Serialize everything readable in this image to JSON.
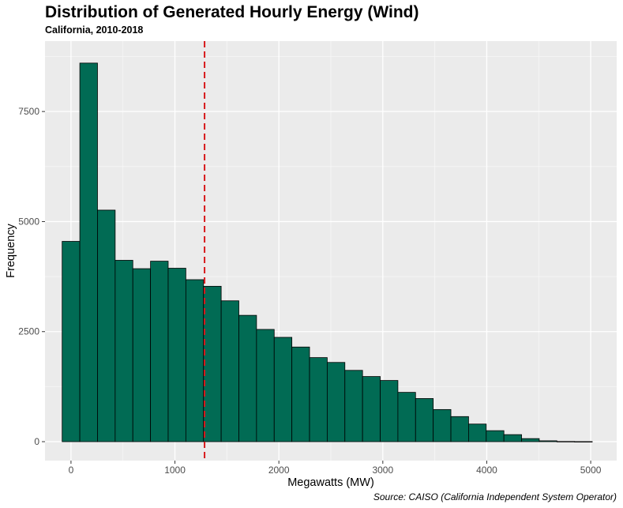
{
  "chart_data": {
    "type": "bar",
    "title": "Distribution of Generated Hourly Energy (Wind)",
    "subtitle": "California, 2010-2018",
    "caption": "Source: CAISO (California Independent System Operator)",
    "xlabel": "Megawatts (MW)",
    "ylabel": "Frequency",
    "xlim": [
      -250,
      5250
    ],
    "ylim": [
      -430,
      9100
    ],
    "x_ticks": [
      0,
      1000,
      2000,
      3000,
      4000,
      5000
    ],
    "x_tick_labels": [
      "0",
      "1000",
      "2000",
      "3000",
      "4000",
      "5000"
    ],
    "y_ticks": [
      0,
      2500,
      5000,
      7500
    ],
    "y_tick_labels": [
      "0",
      "2500",
      "5000",
      "7500"
    ],
    "bin_width": 170,
    "bins": [
      {
        "x0": -85,
        "x1": 85,
        "count": 4550
      },
      {
        "x0": 85,
        "x1": 255,
        "count": 8600
      },
      {
        "x0": 255,
        "x1": 425,
        "count": 5260
      },
      {
        "x0": 425,
        "x1": 595,
        "count": 4120
      },
      {
        "x0": 595,
        "x1": 765,
        "count": 3930
      },
      {
        "x0": 765,
        "x1": 935,
        "count": 4100
      },
      {
        "x0": 935,
        "x1": 1105,
        "count": 3940
      },
      {
        "x0": 1105,
        "x1": 1275,
        "count": 3680
      },
      {
        "x0": 1275,
        "x1": 1445,
        "count": 3530
      },
      {
        "x0": 1445,
        "x1": 1615,
        "count": 3200
      },
      {
        "x0": 1615,
        "x1": 1785,
        "count": 2870
      },
      {
        "x0": 1785,
        "x1": 1955,
        "count": 2550
      },
      {
        "x0": 1955,
        "x1": 2125,
        "count": 2370
      },
      {
        "x0": 2125,
        "x1": 2295,
        "count": 2150
      },
      {
        "x0": 2295,
        "x1": 2465,
        "count": 1910
      },
      {
        "x0": 2465,
        "x1": 2635,
        "count": 1800
      },
      {
        "x0": 2635,
        "x1": 2805,
        "count": 1620
      },
      {
        "x0": 2805,
        "x1": 2975,
        "count": 1480
      },
      {
        "x0": 2975,
        "x1": 3145,
        "count": 1390
      },
      {
        "x0": 3145,
        "x1": 3315,
        "count": 1120
      },
      {
        "x0": 3315,
        "x1": 3485,
        "count": 980
      },
      {
        "x0": 3485,
        "x1": 3655,
        "count": 730
      },
      {
        "x0": 3655,
        "x1": 3825,
        "count": 570
      },
      {
        "x0": 3825,
        "x1": 3995,
        "count": 400
      },
      {
        "x0": 3995,
        "x1": 4165,
        "count": 250
      },
      {
        "x0": 4165,
        "x1": 4335,
        "count": 160
      },
      {
        "x0": 4335,
        "x1": 4505,
        "count": 70
      },
      {
        "x0": 4505,
        "x1": 4675,
        "count": 20
      },
      {
        "x0": 4675,
        "x1": 4845,
        "count": 5
      },
      {
        "x0": 4845,
        "x1": 5015,
        "count": 2
      }
    ],
    "reference_line": {
      "x": 1285,
      "style": "dashed"
    },
    "grid": true,
    "legend": "none",
    "colors": {
      "bar_fill": "#016b54",
      "bar_stroke": "#000000",
      "reference_line": "#d7191c",
      "panel_background": "#ebebeb",
      "grid_major": "#ffffff"
    }
  }
}
